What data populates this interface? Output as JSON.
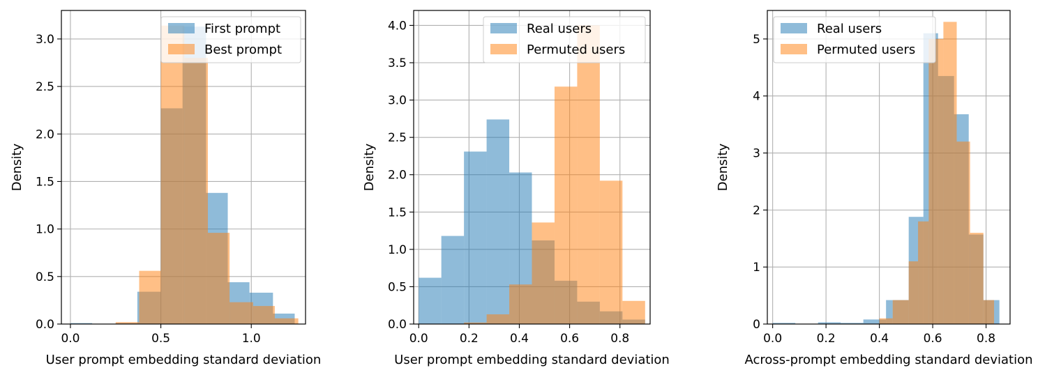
{
  "colors": {
    "blue": "#1f77b4",
    "orange": "#ff7f0e",
    "grid": "#b0b0b0",
    "bar_alpha": 0.5
  },
  "chart_data": [
    {
      "type": "histogram",
      "xlabel": "User prompt embedding standard deviation",
      "ylabel": "Density",
      "xlim": [
        -0.05,
        1.3
      ],
      "ylim": [
        0,
        3.3
      ],
      "xticks": [
        0.0,
        0.5,
        1.0
      ],
      "xtick_labels": [
        "0.0",
        "0.5",
        "1.0"
      ],
      "yticks": [
        0.0,
        0.5,
        1.0,
        1.5,
        2.0,
        2.5,
        3.0
      ],
      "ytick_labels": [
        "0.0",
        "0.5",
        "1.0",
        "1.5",
        "2.0",
        "2.5",
        "3.0"
      ],
      "grid": true,
      "legend_position": "top-right",
      "series": [
        {
          "name": "First prompt",
          "color": "#1f77b4",
          "bins": [
            0.0,
            0.12,
            0.25,
            0.37,
            0.5,
            0.62,
            0.75,
            0.87,
            0.99,
            1.12,
            1.24
          ],
          "values": [
            0.01,
            0.0,
            0.01,
            0.34,
            2.27,
            3.13,
            1.38,
            0.44,
            0.33,
            0.11
          ]
        },
        {
          "name": "Best prompt",
          "color": "#ff7f0e",
          "bins": [
            0.0,
            0.13,
            0.25,
            0.38,
            0.5,
            0.63,
            0.76,
            0.88,
            1.01,
            1.13,
            1.26
          ],
          "values": [
            0.0,
            0.0,
            0.02,
            0.56,
            3.14,
            2.8,
            0.96,
            0.23,
            0.19,
            0.06
          ]
        }
      ]
    },
    {
      "type": "histogram",
      "xlabel": "User prompt embedding standard deviation",
      "ylabel": "Density",
      "xlim": [
        -0.02,
        0.92
      ],
      "ylim": [
        0,
        4.2
      ],
      "xticks": [
        0.0,
        0.2,
        0.4,
        0.6,
        0.8
      ],
      "xtick_labels": [
        "0.0",
        "0.2",
        "0.4",
        "0.6",
        "0.8"
      ],
      "yticks": [
        0.0,
        0.5,
        1.0,
        1.5,
        2.0,
        2.5,
        3.0,
        3.5,
        4.0
      ],
      "ytick_labels": [
        "0.0",
        "0.5",
        "1.0",
        "1.5",
        "2.0",
        "2.5",
        "3.0",
        "3.5",
        "4.0"
      ],
      "grid": true,
      "legend_position": "top-right",
      "series": [
        {
          "name": "Real users",
          "color": "#1f77b4",
          "bins": [
            0.0,
            0.09,
            0.18,
            0.27,
            0.36,
            0.45,
            0.54,
            0.63,
            0.72,
            0.81,
            0.9
          ],
          "values": [
            0.62,
            1.18,
            2.31,
            2.74,
            2.03,
            1.12,
            0.58,
            0.3,
            0.17,
            0.06
          ]
        },
        {
          "name": "Permuted users",
          "color": "#ff7f0e",
          "bins": [
            0.0,
            0.09,
            0.18,
            0.27,
            0.36,
            0.45,
            0.54,
            0.63,
            0.72,
            0.81,
            0.9
          ],
          "values": [
            0.0,
            0.0,
            0.02,
            0.13,
            0.53,
            1.36,
            3.18,
            4.0,
            1.92,
            0.31
          ]
        }
      ]
    },
    {
      "type": "histogram",
      "xlabel": "Across-prompt embedding standard deviation",
      "ylabel": "Density",
      "xlim": [
        -0.02,
        0.89
      ],
      "ylim": [
        0,
        5.5
      ],
      "xticks": [
        0.0,
        0.2,
        0.4,
        0.6,
        0.8
      ],
      "xtick_labels": [
        "0.0",
        "0.2",
        "0.4",
        "0.6",
        "0.8"
      ],
      "yticks": [
        0,
        1,
        2,
        3,
        4,
        5
      ],
      "ytick_labels": [
        "0",
        "1",
        "2",
        "3",
        "4",
        "5"
      ],
      "grid": true,
      "legend_position": "top-left",
      "series": [
        {
          "name": "Real users",
          "color": "#1f77b4",
          "bins": [
            0.0,
            0.085,
            0.17,
            0.255,
            0.34,
            0.425,
            0.45,
            0.51,
            0.565,
            0.62,
            0.68,
            0.735,
            0.79,
            0.85
          ],
          "values": [
            0.02,
            0.0,
            0.03,
            0.02,
            0.08,
            0.42,
            0.42,
            1.88,
            5.1,
            4.35,
            3.68,
            1.57,
            0.42
          ]
        },
        {
          "name": "Permuted users",
          "color": "#ff7f0e",
          "bins": [
            0.4,
            0.45,
            0.51,
            0.545,
            0.585,
            0.64,
            0.69,
            0.74,
            0.79,
            0.83
          ],
          "values": [
            0.1,
            0.42,
            1.1,
            1.8,
            5.0,
            5.3,
            3.2,
            1.6,
            0.42
          ]
        }
      ]
    }
  ]
}
